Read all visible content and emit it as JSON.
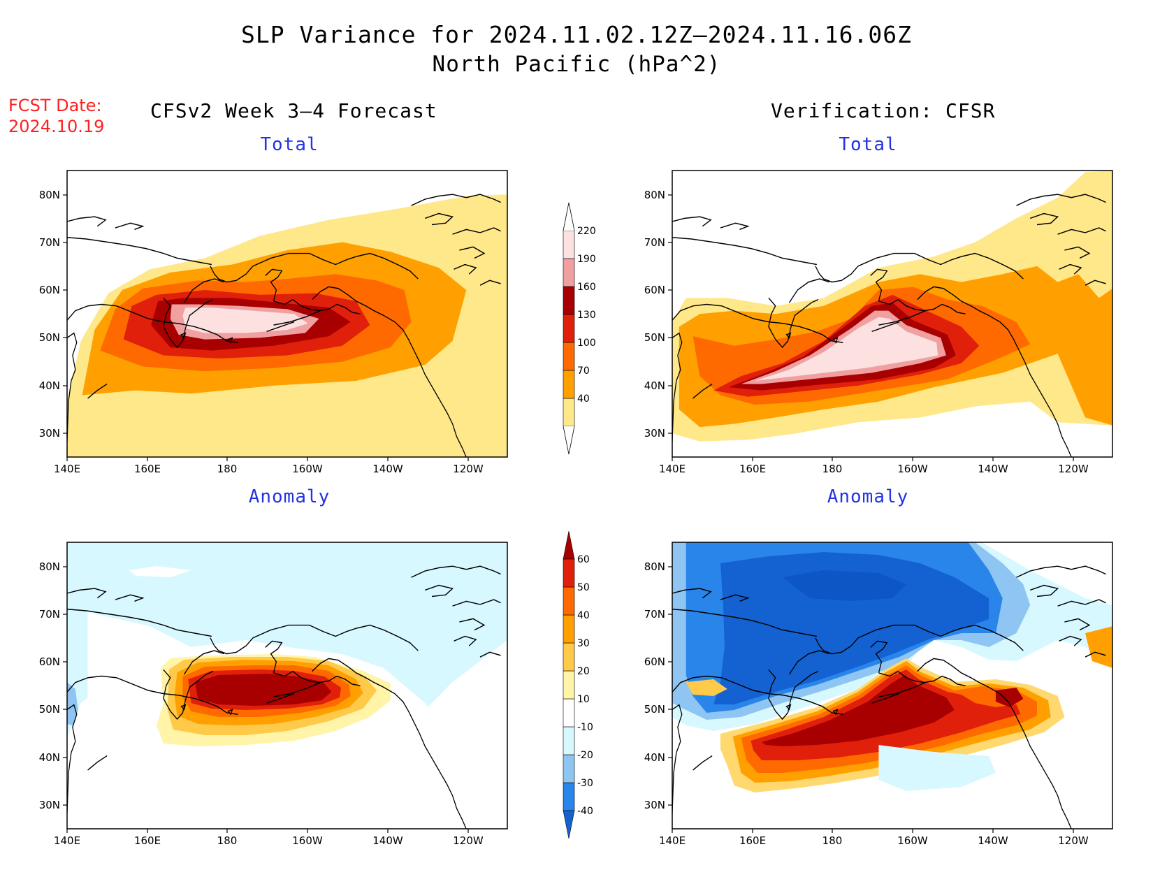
{
  "header": {
    "title_line1": "SLP Variance for 2024.11.02.12Z–2024.11.16.06Z",
    "title_line2": "North Pacific (hPa^2)",
    "fcst_label": "FCST Date:",
    "fcst_date": "2024.10.19",
    "left_column": "CFSv2 Week 3–4 Forecast",
    "right_column": "Verification: CFSR"
  },
  "panels": {
    "total_left": "Total",
    "total_right": "Total",
    "anom_left": "Anomaly",
    "anom_right": "Anomaly"
  },
  "axes": {
    "lat_labels": [
      "80N",
      "70N",
      "60N",
      "50N",
      "40N",
      "30N"
    ],
    "lon_labels": [
      "140E",
      "160E",
      "180",
      "160W",
      "140W",
      "120W"
    ]
  },
  "colorbar_total": {
    "levels": [
      "40",
      "70",
      "100",
      "130",
      "160",
      "190",
      "220"
    ],
    "colors": [
      "#ffe88a",
      "#ffa000",
      "#ff6a00",
      "#e0200a",
      "#a80000",
      "#f0a0a0",
      "#fde0e0"
    ]
  },
  "colorbar_anomaly": {
    "levels": [
      "-40",
      "-30",
      "-20",
      "-10",
      "10",
      "20",
      "30",
      "40",
      "50",
      "60"
    ],
    "colors": [
      "#1462d2",
      "#2a85ea",
      "#8ec5f2",
      "#d8f8ff",
      "#ffffff",
      "#fff4a8",
      "#ffc94a",
      "#ffa000",
      "#ff6a00",
      "#e0200a",
      "#a80000"
    ]
  }
}
